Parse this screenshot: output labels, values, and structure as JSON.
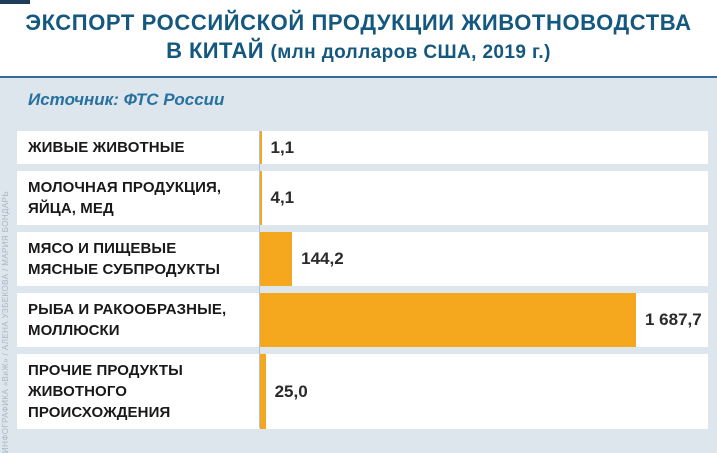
{
  "header": {
    "title_line1": "ЭКСПОРТ РОССИЙСКОЙ ПРОДУКЦИИ ЖИВОТНОВОДСТВА",
    "title_line2_main": "В КИТАЙ",
    "title_line2_sub": "(млн долларов США, 2019 г.)"
  },
  "source": {
    "label": "Источник: ФТС России"
  },
  "watermark": {
    "text": "ИНФОГРАФИКА «ВиЖ» / АЛЕНА УЗБЕКОВА / МАРИЯ БОНДАРЬ"
  },
  "colors": {
    "bar": "#f5a71e",
    "title_blue": "#15587f",
    "divider_blue": "#36699b",
    "background": "#dee6ed",
    "row_background": "#ffffff",
    "axis_line": "#a9c6de",
    "label_black": "#191919",
    "watermark_gray": "#a6b7c5"
  },
  "chart_data": {
    "type": "bar",
    "orientation": "horizontal",
    "title": "ЭКСПОРТ РОССИЙСКОЙ ПРОДУКЦИИ ЖИВОТНОВОДСТВА В КИТАЙ (млн долларов США, 2019 г.)",
    "unit": "млн долларов США",
    "year": "2019",
    "source": "ФТС России",
    "legend": "none",
    "grid": "off",
    "categories": [
      "ЖИВЫЕ ЖИВОТНЫЕ",
      "МОЛОЧНАЯ ПРОДУКЦИЯ, ЯЙЦА, МЕД",
      "МЯСО И ПИЩЕВЫЕ МЯСНЫЕ СУБПРОДУКТЫ",
      "РЫБА И РАКООБРАЗНЫЕ, МОЛЛЮСКИ",
      "ПРОЧИЕ ПРОДУКТЫ ЖИВОТНОГО ПРОИСХОЖДЕНИЯ"
    ],
    "label_lines": [
      [
        "ЖИВЫЕ ЖИВОТНЫЕ"
      ],
      [
        "МОЛОЧНАЯ ПРОДУКЦИЯ,",
        "ЯЙЦА, МЕД"
      ],
      [
        "МЯСО И ПИЩЕВЫЕ",
        "МЯСНЫЕ СУБПРОДУКТЫ"
      ],
      [
        "РЫБА И РАКООБРАЗНЫЕ,",
        "МОЛЛЮСКИ"
      ],
      [
        "ПРОЧИЕ ПРОДУКТЫ",
        "ЖИВОТНОГО",
        "ПРОИСХОЖДЕНИЯ"
      ]
    ],
    "values": [
      1.1,
      4.1,
      144.2,
      1687.7,
      25.0
    ],
    "value_labels": [
      "1,1",
      "4,1",
      "144,2",
      "1 687,7",
      "25,0"
    ],
    "bar_color": "#f5a71e"
  }
}
